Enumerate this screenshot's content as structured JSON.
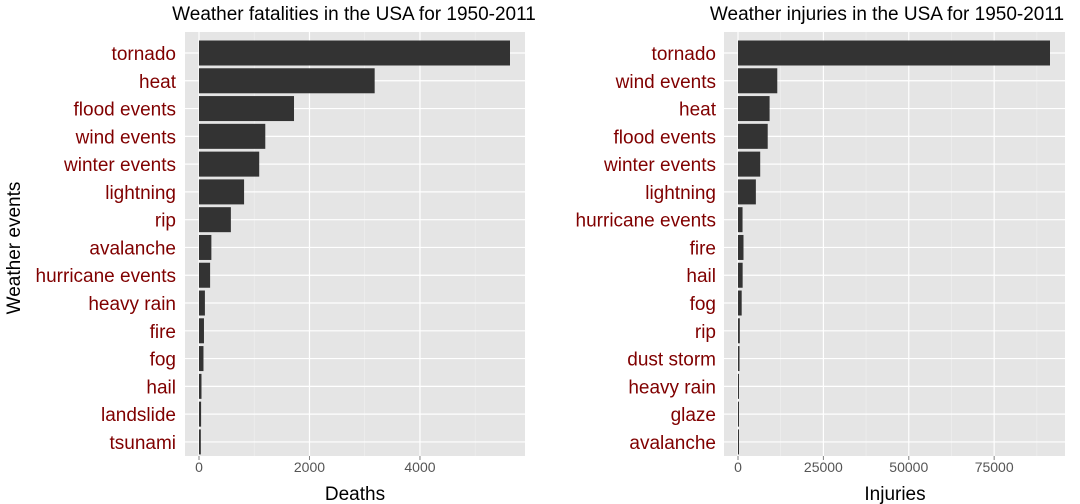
{
  "figure": {
    "ylabel": "Weather events"
  },
  "colors": {
    "panel_background": "#e5e5e5",
    "grid_major": "#ffffff",
    "grid_minor": "#ebebeb",
    "bar_fill": "#333333",
    "category_label": "#800000",
    "tick_label": "#555555"
  },
  "chart_data": [
    {
      "type": "bar",
      "orientation": "horizontal",
      "title": "Weather fatalities in the USA for 1950-2011",
      "xlabel": "Deaths",
      "ylabel": "Weather events",
      "xlim": [
        0,
        5900
      ],
      "xticks": [
        0,
        2000,
        4000
      ],
      "xtick_labels": [
        "0",
        "2000",
        "4000"
      ],
      "grid": true,
      "categories": [
        "tornado",
        "heat",
        "flood events",
        "wind events",
        "winter events",
        "lightning",
        "rip",
        "avalanche",
        "hurricane events",
        "heavy rain",
        "fire",
        "fog",
        "hail",
        "landslide",
        "tsunami"
      ],
      "values": [
        5630,
        3180,
        1720,
        1200,
        1090,
        816,
        577,
        224,
        201,
        107,
        90,
        81,
        45,
        38,
        33
      ]
    },
    {
      "type": "bar",
      "orientation": "horizontal",
      "title": "Weather injuries in the USA for 1950-2011",
      "xlabel": "Injuries",
      "ylabel": "",
      "xlim": [
        0,
        96000
      ],
      "xticks": [
        0,
        25000,
        50000,
        75000
      ],
      "xtick_labels": [
        "0",
        "25000",
        "50000",
        "75000"
      ],
      "grid": true,
      "categories": [
        "tornado",
        "wind events",
        "heat",
        "flood events",
        "winter events",
        "lightning",
        "hurricane events",
        "fire",
        "hail",
        "fog",
        "rip",
        "dust storm",
        "heavy rain",
        "glaze",
        "avalanche"
      ],
      "values": [
        91350,
        11500,
        9250,
        8700,
        6500,
        5230,
        1330,
        1610,
        1360,
        1080,
        529,
        440,
        280,
        216,
        170
      ]
    }
  ]
}
